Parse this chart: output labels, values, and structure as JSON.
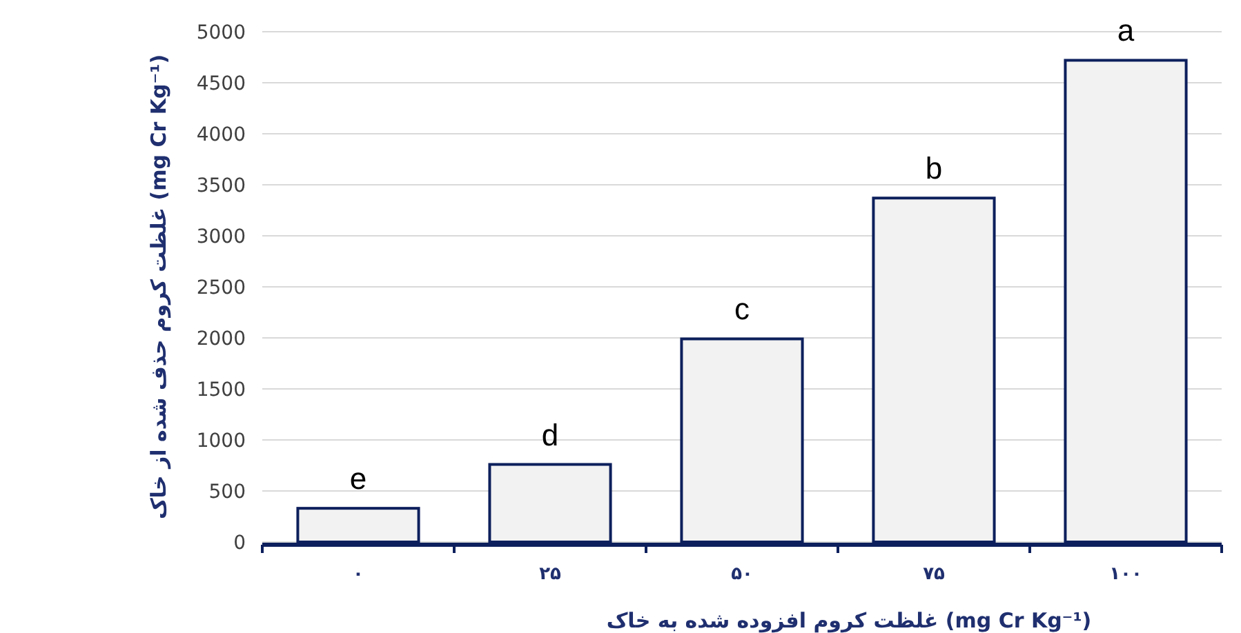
{
  "chart_data": {
    "type": "bar",
    "ylabel": "غلظت کروم حذف شده از خاک (mg Cr Kg⁻¹)",
    "xlabel": "غلظت کروم افزوده شده به خاک (mg Cr Kg⁻¹)",
    "categories": [
      "۰",
      "۲۵",
      "۵۰",
      "۷۵",
      "۱۰۰"
    ],
    "values": [
      330,
      760,
      1990,
      3370,
      4720
    ],
    "color": "#f2f2f2",
    "ylim": [
      0,
      5000
    ],
    "yticks": [
      0,
      500,
      1000,
      1500,
      2000,
      2500,
      3000,
      3500,
      4000,
      4500,
      5000
    ],
    "grid": "y",
    "annotations": [
      {
        "text": "e",
        "x": "۰",
        "y": 330
      },
      {
        "text": "d",
        "x": "۲۵",
        "y": 760
      },
      {
        "text": "c",
        "x": "۵۰",
        "y": 1990
      },
      {
        "text": "b",
        "x": "۷۵",
        "y": 3370
      },
      {
        "text": "a",
        "x": "۱۰۰",
        "y": 4720
      }
    ]
  }
}
